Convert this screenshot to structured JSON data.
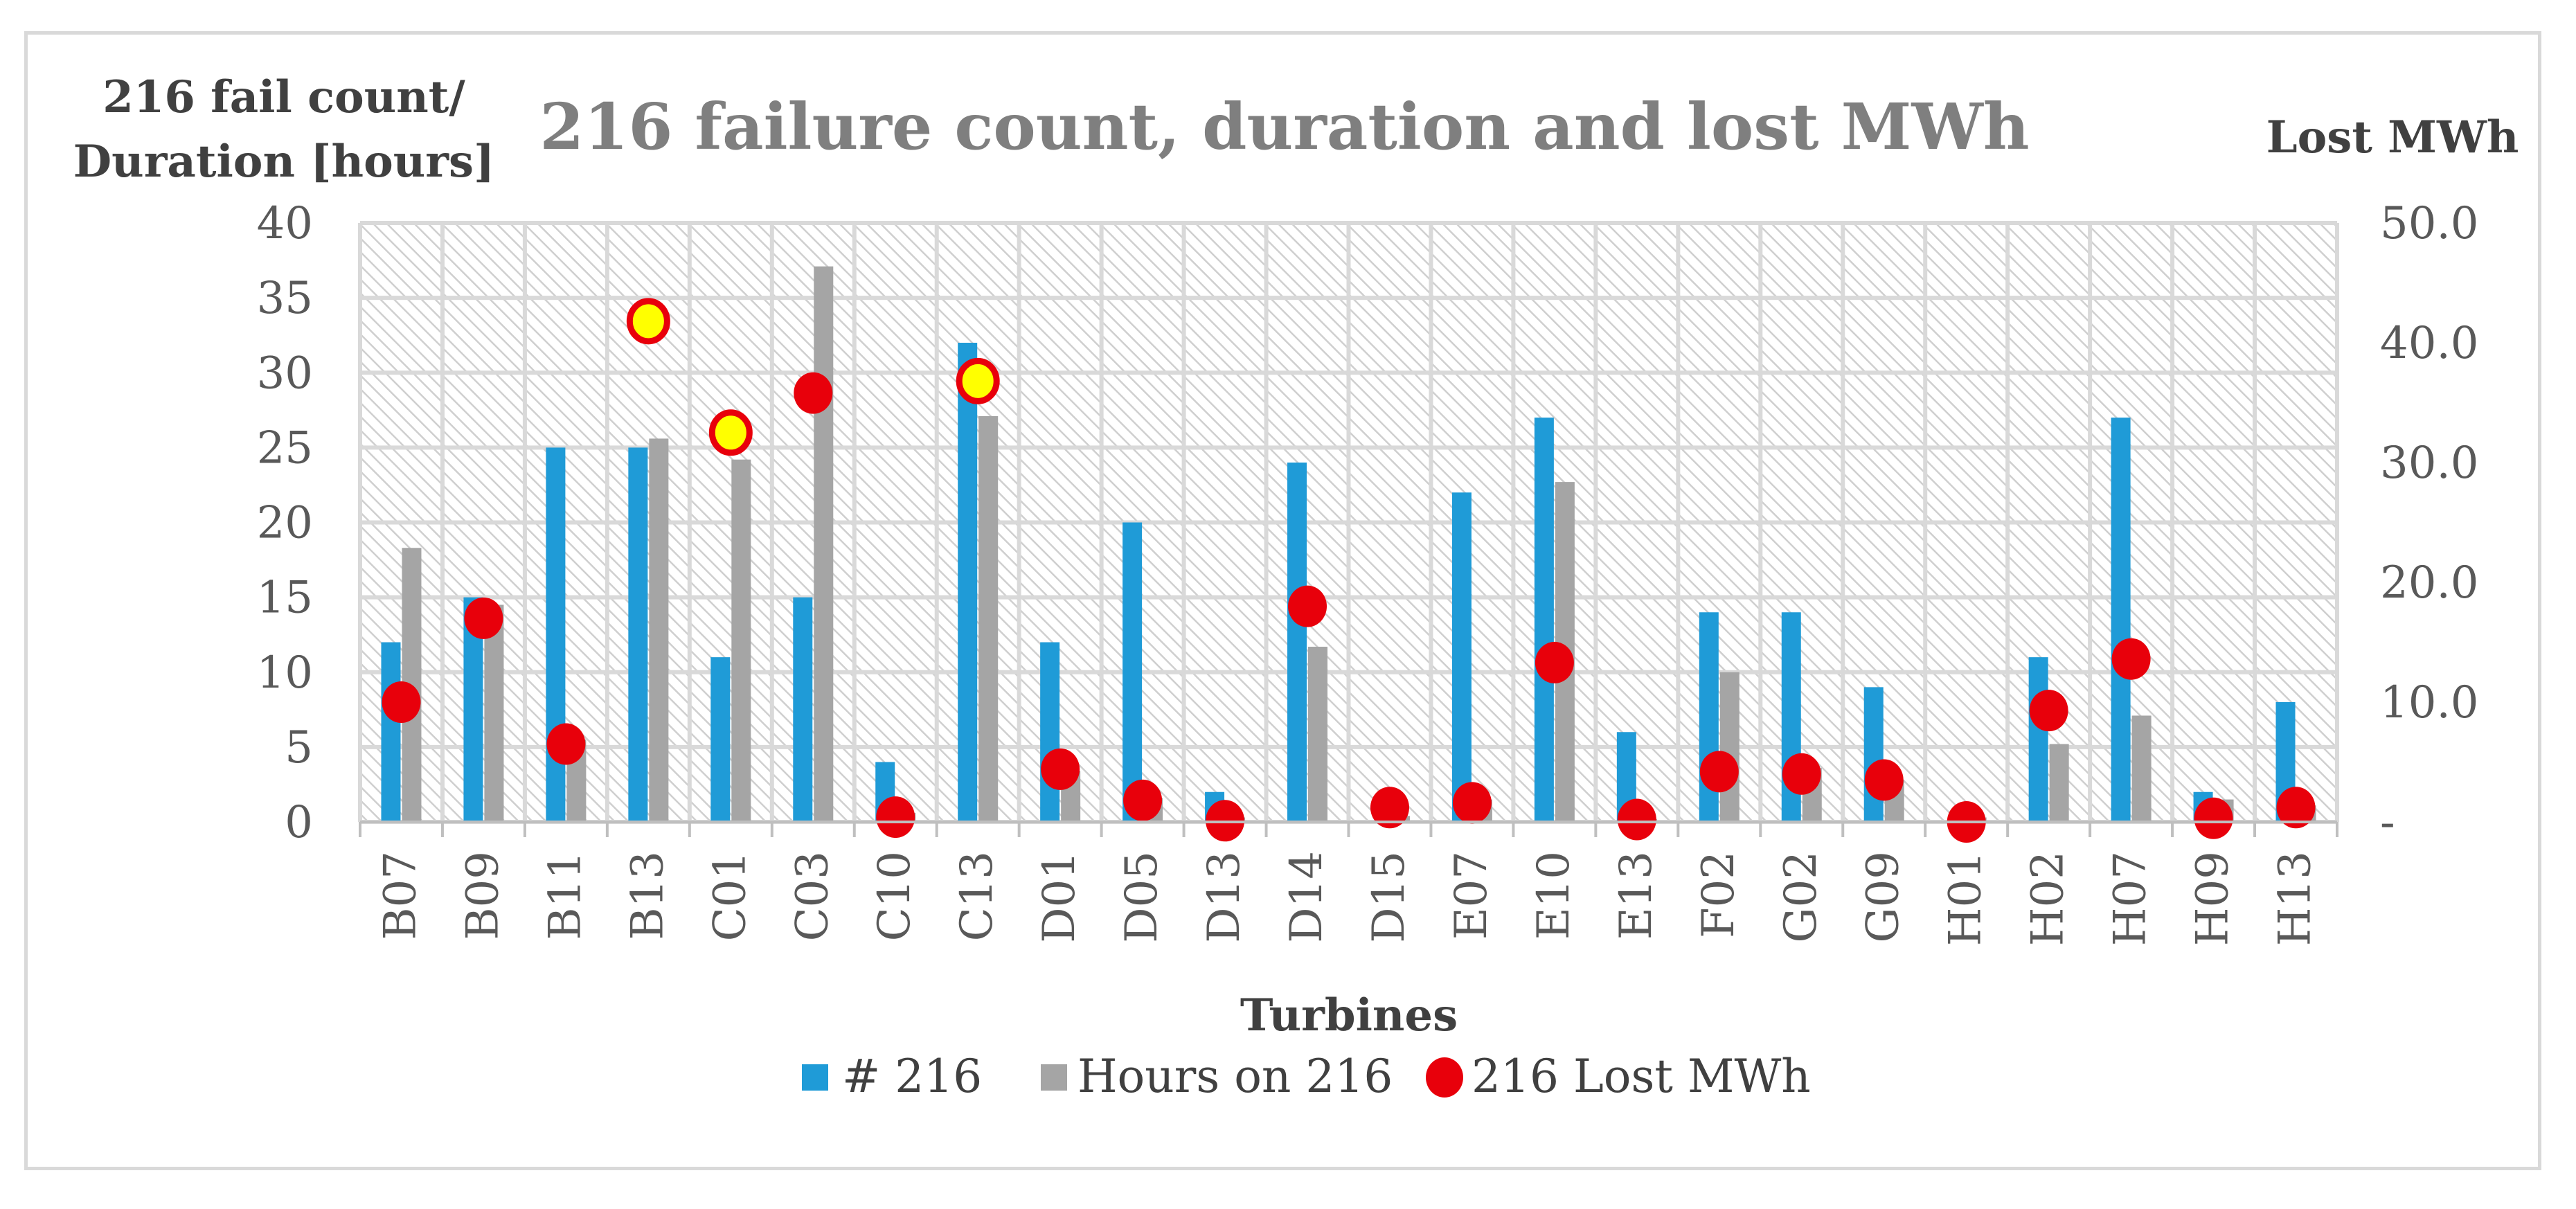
{
  "chart_data": {
    "type": "bar",
    "title": "216 failure count, duration and lost MWh",
    "xlabel": "Turbines",
    "ylabel_left_line1": "216 fail count/",
    "ylabel_left_line2": "Duration [hours]",
    "ylabel_right": "Lost MWh",
    "ylim_left": [
      0,
      40
    ],
    "ylim_right": [
      0,
      50
    ],
    "left_ticks": [
      "0",
      "5",
      "10",
      "15",
      "20",
      "25",
      "30",
      "35",
      "40"
    ],
    "right_ticks": [
      "-",
      "10.0",
      "20.0",
      "30.0",
      "40.0",
      "50.0"
    ],
    "categories": [
      "B07",
      "B09",
      "B11",
      "B13",
      "C01",
      "C03",
      "C10",
      "C13",
      "D01",
      "D05",
      "D13",
      "D14",
      "D15",
      "E07",
      "E10",
      "E13",
      "F02",
      "G02",
      "G09",
      "H01",
      "H02",
      "H07",
      "H09",
      "H13"
    ],
    "series": [
      {
        "name": "# 216",
        "axis": "left",
        "kind": "bar",
        "color": "#1f9bd7",
        "values": [
          12,
          15,
          25,
          25,
          11,
          15,
          4,
          32,
          12,
          20,
          2,
          24,
          0,
          22,
          27,
          6,
          14,
          14,
          9,
          0,
          11,
          27,
          2,
          8
        ]
      },
      {
        "name": "Hours on 216",
        "axis": "left",
        "kind": "bar",
        "color": "#a5a5a5",
        "values": [
          18.3,
          14.5,
          5.5,
          25.6,
          24.2,
          37.1,
          0.6,
          27.1,
          3.4,
          1.6,
          0.3,
          11.7,
          0.4,
          1.5,
          22.7,
          0.2,
          10.0,
          3.6,
          2.8,
          0.3,
          5.2,
          7.1,
          1.5,
          1.1
        ]
      },
      {
        "name": "216 Lost MWh",
        "axis": "right",
        "kind": "marker",
        "color": "#e8000b",
        "highlight_color": "#ffff00",
        "values": [
          10.0,
          17.0,
          6.5,
          41.8,
          32.5,
          35.8,
          0.4,
          36.8,
          4.4,
          1.8,
          0.1,
          18.0,
          1.2,
          1.6,
          13.3,
          0.2,
          4.2,
          4.0,
          3.5,
          0.0,
          9.3,
          13.6,
          0.3,
          1.2
        ],
        "highlighted": [
          "B13",
          "C01",
          "C13"
        ]
      }
    ],
    "legend": {
      "position": "bottom",
      "items": [
        "# 216",
        "Hours on 216",
        "216 Lost MWh"
      ]
    },
    "grid": true
  }
}
